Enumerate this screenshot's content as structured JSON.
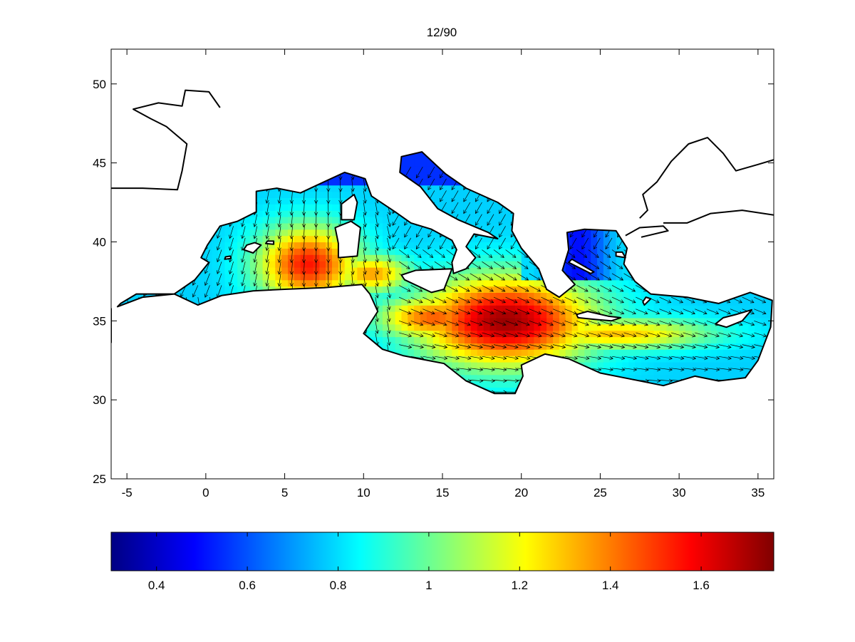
{
  "figure": {
    "title": "12/90"
  },
  "chart_data": {
    "type": "heatmap",
    "title": "12/90",
    "xlabel": "",
    "ylabel": "",
    "xlim": [
      -6,
      36
    ],
    "ylim": [
      25,
      52.2
    ],
    "x_ticks": [
      -5,
      0,
      5,
      10,
      15,
      20,
      25,
      30,
      35
    ],
    "y_ticks": [
      25,
      30,
      35,
      40,
      45,
      50
    ],
    "grid": false,
    "overlay": "quiver vectors (flow direction arrows)",
    "colormap": "jet",
    "colorbar": {
      "orientation": "horizontal",
      "range": [
        0.3,
        1.76
      ],
      "ticks": [
        "0.4",
        "0.6",
        "0.8",
        "1",
        "1.2",
        "1.4",
        "1.6"
      ],
      "tick_values": [
        0.4,
        0.6,
        0.8,
        1.0,
        1.2,
        1.4,
        1.6
      ]
    },
    "field_peaks": [
      {
        "lon": 6.5,
        "lat": 38.6,
        "value": 1.55
      },
      {
        "lon": 19.0,
        "lat": 35.0,
        "value": 1.72
      },
      {
        "lon": 26.0,
        "lat": 34.2,
        "value": 1.3
      }
    ]
  }
}
